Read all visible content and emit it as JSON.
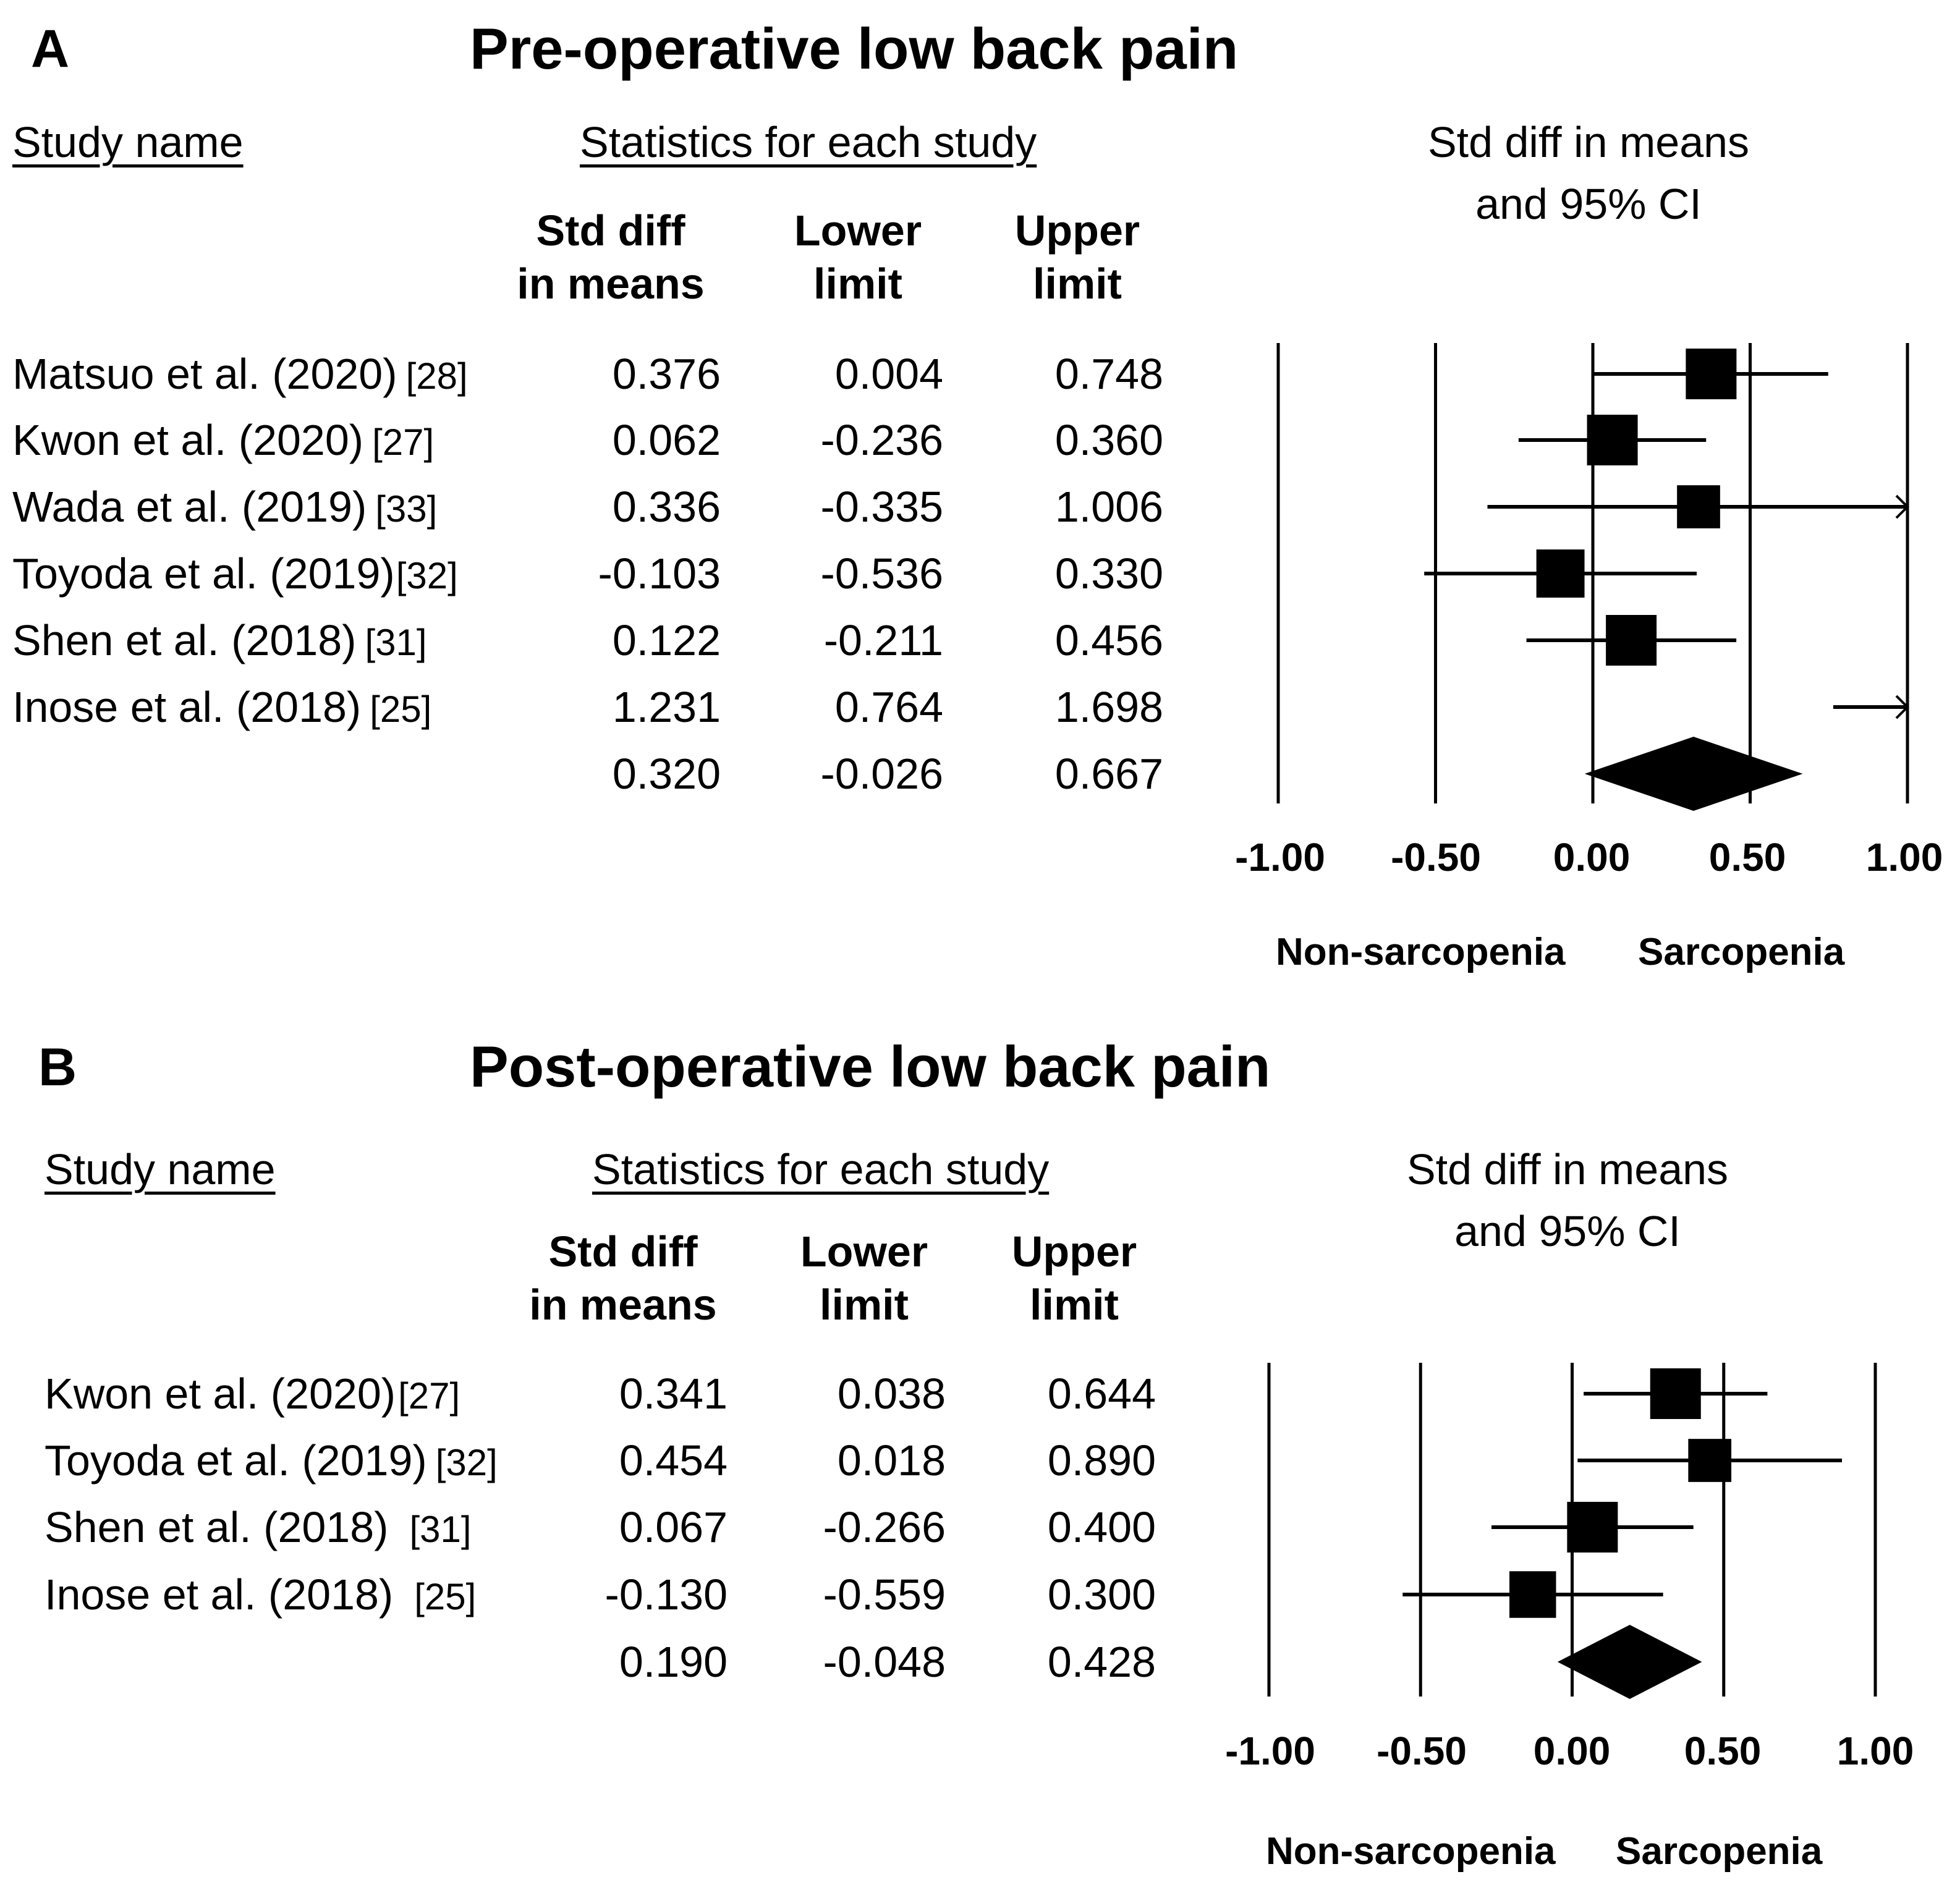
{
  "panels": [
    {
      "letter": "A",
      "title": "Pre-operative low back pain",
      "headers": {
        "study": "Study name",
        "stats": "Statistics for each study",
        "plot_line1": "Std diff in means",
        "plot_line2": "and 95% CI",
        "col1_line1": "Std diff",
        "col1_line2": "in means",
        "col2_line1": "Lower",
        "col2_line2": "limit",
        "col3_line1": "Upper",
        "col3_line2": "limit"
      },
      "studies": [
        {
          "name": "Matsuo et al. (2020)",
          "ref": "[28]",
          "std": "0.376",
          "lower": "0.004",
          "upper": "0.748"
        },
        {
          "name": "Kwon et al. (2020)",
          "ref": "[27]",
          "std": "0.062",
          "lower": "-0.236",
          "upper": "0.360"
        },
        {
          "name": "Wada et al. (2019)",
          "ref": "[33]",
          "std": "0.336",
          "lower": "-0.335",
          "upper": "1.006"
        },
        {
          "name": "Toyoda et al. (2019)",
          "ref": "[32]",
          "std": "-0.103",
          "lower": "-0.536",
          "upper": "0.330"
        },
        {
          "name": "Shen et al. (2018)",
          "ref": "[31]",
          "std": "0.122",
          "lower": "-0.211",
          "upper": "0.456"
        },
        {
          "name": "Inose et al. (2018)",
          "ref": "[25]",
          "std": "1.231",
          "lower": "0.764",
          "upper": "1.698"
        }
      ],
      "pooled": {
        "std": "0.320",
        "lower": "-0.026",
        "upper": "0.667"
      },
      "ticks": [
        "-1.00",
        "-0.50",
        "0.00",
        "0.50",
        "1.00"
      ],
      "left_label": "Non-sarcopenia",
      "right_label": "Sarcopenia"
    },
    {
      "letter": "B",
      "title": "Post-operative low back pain",
      "headers": {
        "study": "Study name",
        "stats": "Statistics for each study",
        "plot_line1": "Std diff in means",
        "plot_line2": "and 95% CI",
        "col1_line1": "Std diff",
        "col1_line2": "in means",
        "col2_line1": "Lower",
        "col2_line2": "limit",
        "col3_line1": "Upper",
        "col3_line2": "limit"
      },
      "studies": [
        {
          "name": "Kwon et al. (2020)",
          "ref": "[27]",
          "std": "0.341",
          "lower": "0.038",
          "upper": "0.644"
        },
        {
          "name": "Toyoda et al. (2019)",
          "ref": "[32]",
          "std": "0.454",
          "lower": "0.018",
          "upper": "0.890"
        },
        {
          "name": "Shen et al. (2018)",
          "ref": "[31]",
          "std": "0.067",
          "lower": "-0.266",
          "upper": "0.400"
        },
        {
          "name": "Inose et al. (2018)",
          "ref": "[25]",
          "std": "-0.130",
          "lower": "-0.559",
          "upper": "0.300"
        }
      ],
      "pooled": {
        "std": "0.190",
        "lower": "-0.048",
        "upper": "0.428"
      },
      "ticks": [
        "-1.00",
        "-0.50",
        "0.00",
        "0.50",
        "1.00"
      ],
      "left_label": "Non-sarcopenia",
      "right_label": "Sarcopenia"
    }
  ],
  "chart_data": [
    {
      "type": "forest",
      "title": "Pre-operative low back pain",
      "xlabel": "Std diff in means and 95% CI",
      "xlim": [
        -1.0,
        1.0
      ],
      "series": [
        {
          "name": "Matsuo et al. (2020)",
          "est": 0.376,
          "lo": 0.004,
          "hi": 0.748,
          "weight": 1.0
        },
        {
          "name": "Kwon et al. (2020)",
          "est": 0.062,
          "lo": -0.236,
          "hi": 0.36,
          "weight": 1.0
        },
        {
          "name": "Wada et al. (2019)",
          "est": 0.336,
          "lo": -0.335,
          "hi": 1.006,
          "weight": 0.85
        },
        {
          "name": "Toyoda et al. (2019)",
          "est": -0.103,
          "lo": -0.536,
          "hi": 0.33,
          "weight": 0.95
        },
        {
          "name": "Shen et al. (2018)",
          "est": 0.122,
          "lo": -0.211,
          "hi": 0.456,
          "weight": 1.0
        },
        {
          "name": "Inose et al. (2018)",
          "est": 1.231,
          "lo": 0.764,
          "hi": 1.698,
          "weight": 0.95
        }
      ],
      "pooled": {
        "est": 0.32,
        "lo": -0.026,
        "hi": 0.667
      },
      "left_label": "Non-sarcopenia",
      "right_label": "Sarcopenia"
    },
    {
      "type": "forest",
      "title": "Post-operative low back pain",
      "xlabel": "Std diff in means and 95% CI",
      "xlim": [
        -1.0,
        1.0
      ],
      "series": [
        {
          "name": "Kwon et al. (2020)",
          "est": 0.341,
          "lo": 0.038,
          "hi": 0.644,
          "weight": 1.0
        },
        {
          "name": "Toyoda et al. (2019)",
          "est": 0.454,
          "lo": 0.018,
          "hi": 0.89,
          "weight": 0.85
        },
        {
          "name": "Shen et al. (2018)",
          "est": 0.067,
          "lo": -0.266,
          "hi": 0.4,
          "weight": 1.0
        },
        {
          "name": "Inose et al. (2018)",
          "est": -0.13,
          "lo": -0.559,
          "hi": 0.3,
          "weight": 0.92
        }
      ],
      "pooled": {
        "est": 0.19,
        "lo": -0.048,
        "hi": 0.428
      },
      "left_label": "Non-sarcopenia",
      "right_label": "Sarcopenia"
    }
  ]
}
